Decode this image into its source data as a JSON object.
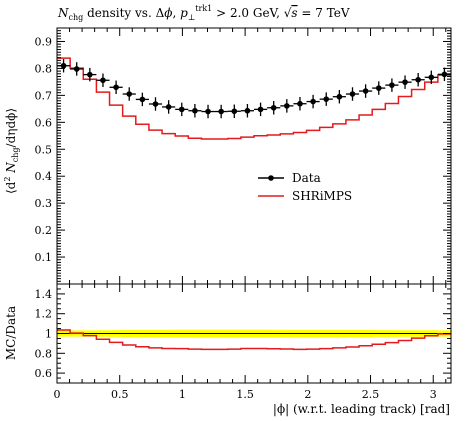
{
  "chart_data": {
    "type": "line",
    "title": "N_chg density vs. Δφ, p_⊥^trk1 > 2.0 GeV, √s = 7 TeV",
    "title_parts": {
      "n": "N",
      "n_sub": "chg",
      "mid": " density vs. Δ",
      "phi": "ϕ",
      "comma": ", ",
      "p": "p",
      "p_sub": "⊥",
      "p_sup": "trk1",
      "gt": " > 2.0 GeV, ",
      "sqrt": "√",
      "s": "s",
      "energy": " = 7 TeV"
    },
    "xlabel": "|ϕ| (w.r.t. leading track) [rad]",
    "ylabel": "⟨d² N_chg/dηdϕ⟩",
    "ylabel_parts": {
      "open": "⟨d",
      "sup2": "2",
      "n": " N",
      "sub": "chg",
      "rest": "/dηdϕ⟩"
    },
    "ratio_ylabel": "MC/Data",
    "xlim": [
      0,
      3.14159
    ],
    "ylim": [
      0,
      0.95
    ],
    "ratio_ylim": [
      0.5,
      1.5
    ],
    "x_ticks": [
      0,
      0.5,
      1,
      1.5,
      2,
      2.5,
      3
    ],
    "x_tick_labels": [
      "0",
      "0.5",
      "1",
      "1.5",
      "2",
      "2.5",
      "3"
    ],
    "y_ticks": [
      0.1,
      0.2,
      0.3,
      0.4,
      0.5,
      0.6,
      0.7,
      0.8,
      0.9
    ],
    "y_tick_labels": [
      "0.1",
      "0.2",
      "0.3",
      "0.4",
      "0.5",
      "0.6",
      "0.7",
      "0.8",
      "0.9"
    ],
    "ratio_y_ticks": [
      0.6,
      0.8,
      1,
      1.2,
      1.4
    ],
    "ratio_y_tick_labels": [
      "0.6",
      "0.8",
      "1",
      "1.2",
      "1.4"
    ],
    "legend_position": "center-right",
    "colors": {
      "data": "#000000",
      "mc": "#e41a1c",
      "band": "#ffff00",
      "band_edge": "#999900"
    },
    "series": [
      {
        "name": "Data",
        "style": "points-with-errors",
        "x": [
          0.0524,
          0.1571,
          0.2618,
          0.3665,
          0.4712,
          0.576,
          0.6807,
          0.7854,
          0.8901,
          0.9948,
          1.0996,
          1.2043,
          1.309,
          1.4137,
          1.5184,
          1.6232,
          1.7279,
          1.8326,
          1.9373,
          2.042,
          2.1468,
          2.2515,
          2.3562,
          2.4609,
          2.5656,
          2.6704,
          2.7751,
          2.8798,
          2.9845,
          3.0892
        ],
        "y": [
          0.81,
          0.798,
          0.777,
          0.756,
          0.73,
          0.705,
          0.685,
          0.668,
          0.657,
          0.648,
          0.643,
          0.64,
          0.64,
          0.641,
          0.643,
          0.648,
          0.654,
          0.661,
          0.669,
          0.677,
          0.686,
          0.695,
          0.705,
          0.716,
          0.727,
          0.738,
          0.749,
          0.758,
          0.767,
          0.778
        ],
        "yerr": [
          0.025,
          0.025,
          0.025,
          0.025,
          0.025,
          0.025,
          0.025,
          0.025,
          0.025,
          0.025,
          0.025,
          0.025,
          0.025,
          0.025,
          0.025,
          0.025,
          0.025,
          0.025,
          0.025,
          0.025,
          0.025,
          0.025,
          0.025,
          0.025,
          0.025,
          0.025,
          0.025,
          0.025,
          0.025,
          0.025
        ]
      },
      {
        "name": "SHRiMPS",
        "style": "step",
        "bin_edges": [
          0,
          0.1047,
          0.2094,
          0.3142,
          0.4189,
          0.5236,
          0.6283,
          0.733,
          0.8378,
          0.9425,
          1.0472,
          1.1519,
          1.2566,
          1.3614,
          1.4661,
          1.5708,
          1.6755,
          1.7802,
          1.885,
          1.9897,
          2.0944,
          2.1991,
          2.3038,
          2.4086,
          2.5133,
          2.618,
          2.7227,
          2.8274,
          2.9322,
          3.0369,
          3.1416
        ],
        "y": [
          0.838,
          0.801,
          0.76,
          0.712,
          0.664,
          0.623,
          0.593,
          0.571,
          0.558,
          0.549,
          0.541,
          0.538,
          0.538,
          0.54,
          0.545,
          0.55,
          0.553,
          0.557,
          0.562,
          0.57,
          0.581,
          0.594,
          0.609,
          0.627,
          0.648,
          0.67,
          0.696,
          0.722,
          0.749,
          0.775
        ]
      }
    ],
    "ratio_series": [
      {
        "name": "SHRiMPS",
        "y": [
          1.035,
          1.004,
          0.978,
          0.942,
          0.91,
          0.884,
          0.866,
          0.855,
          0.849,
          0.847,
          0.842,
          0.84,
          0.84,
          0.842,
          0.848,
          0.849,
          0.846,
          0.843,
          0.84,
          0.842,
          0.847,
          0.855,
          0.864,
          0.876,
          0.891,
          0.908,
          0.929,
          0.953,
          0.977,
          0.996
        ]
      }
    ],
    "ratio_band": {
      "name": "Data",
      "low": [
        0.969,
        0.969,
        0.968,
        0.967,
        0.966,
        0.965,
        0.964,
        0.963,
        0.962,
        0.961,
        0.961,
        0.961,
        0.961,
        0.961,
        0.961,
        0.961,
        0.962,
        0.962,
        0.963,
        0.963,
        0.964,
        0.964,
        0.965,
        0.965,
        0.966,
        0.966,
        0.967,
        0.967,
        0.967,
        0.968
      ],
      "high": [
        1.031,
        1.031,
        1.032,
        1.033,
        1.034,
        1.035,
        1.036,
        1.037,
        1.038,
        1.039,
        1.039,
        1.039,
        1.039,
        1.039,
        1.039,
        1.039,
        1.038,
        1.038,
        1.037,
        1.037,
        1.036,
        1.036,
        1.035,
        1.035,
        1.034,
        1.034,
        1.033,
        1.033,
        1.033,
        1.032
      ]
    }
  }
}
